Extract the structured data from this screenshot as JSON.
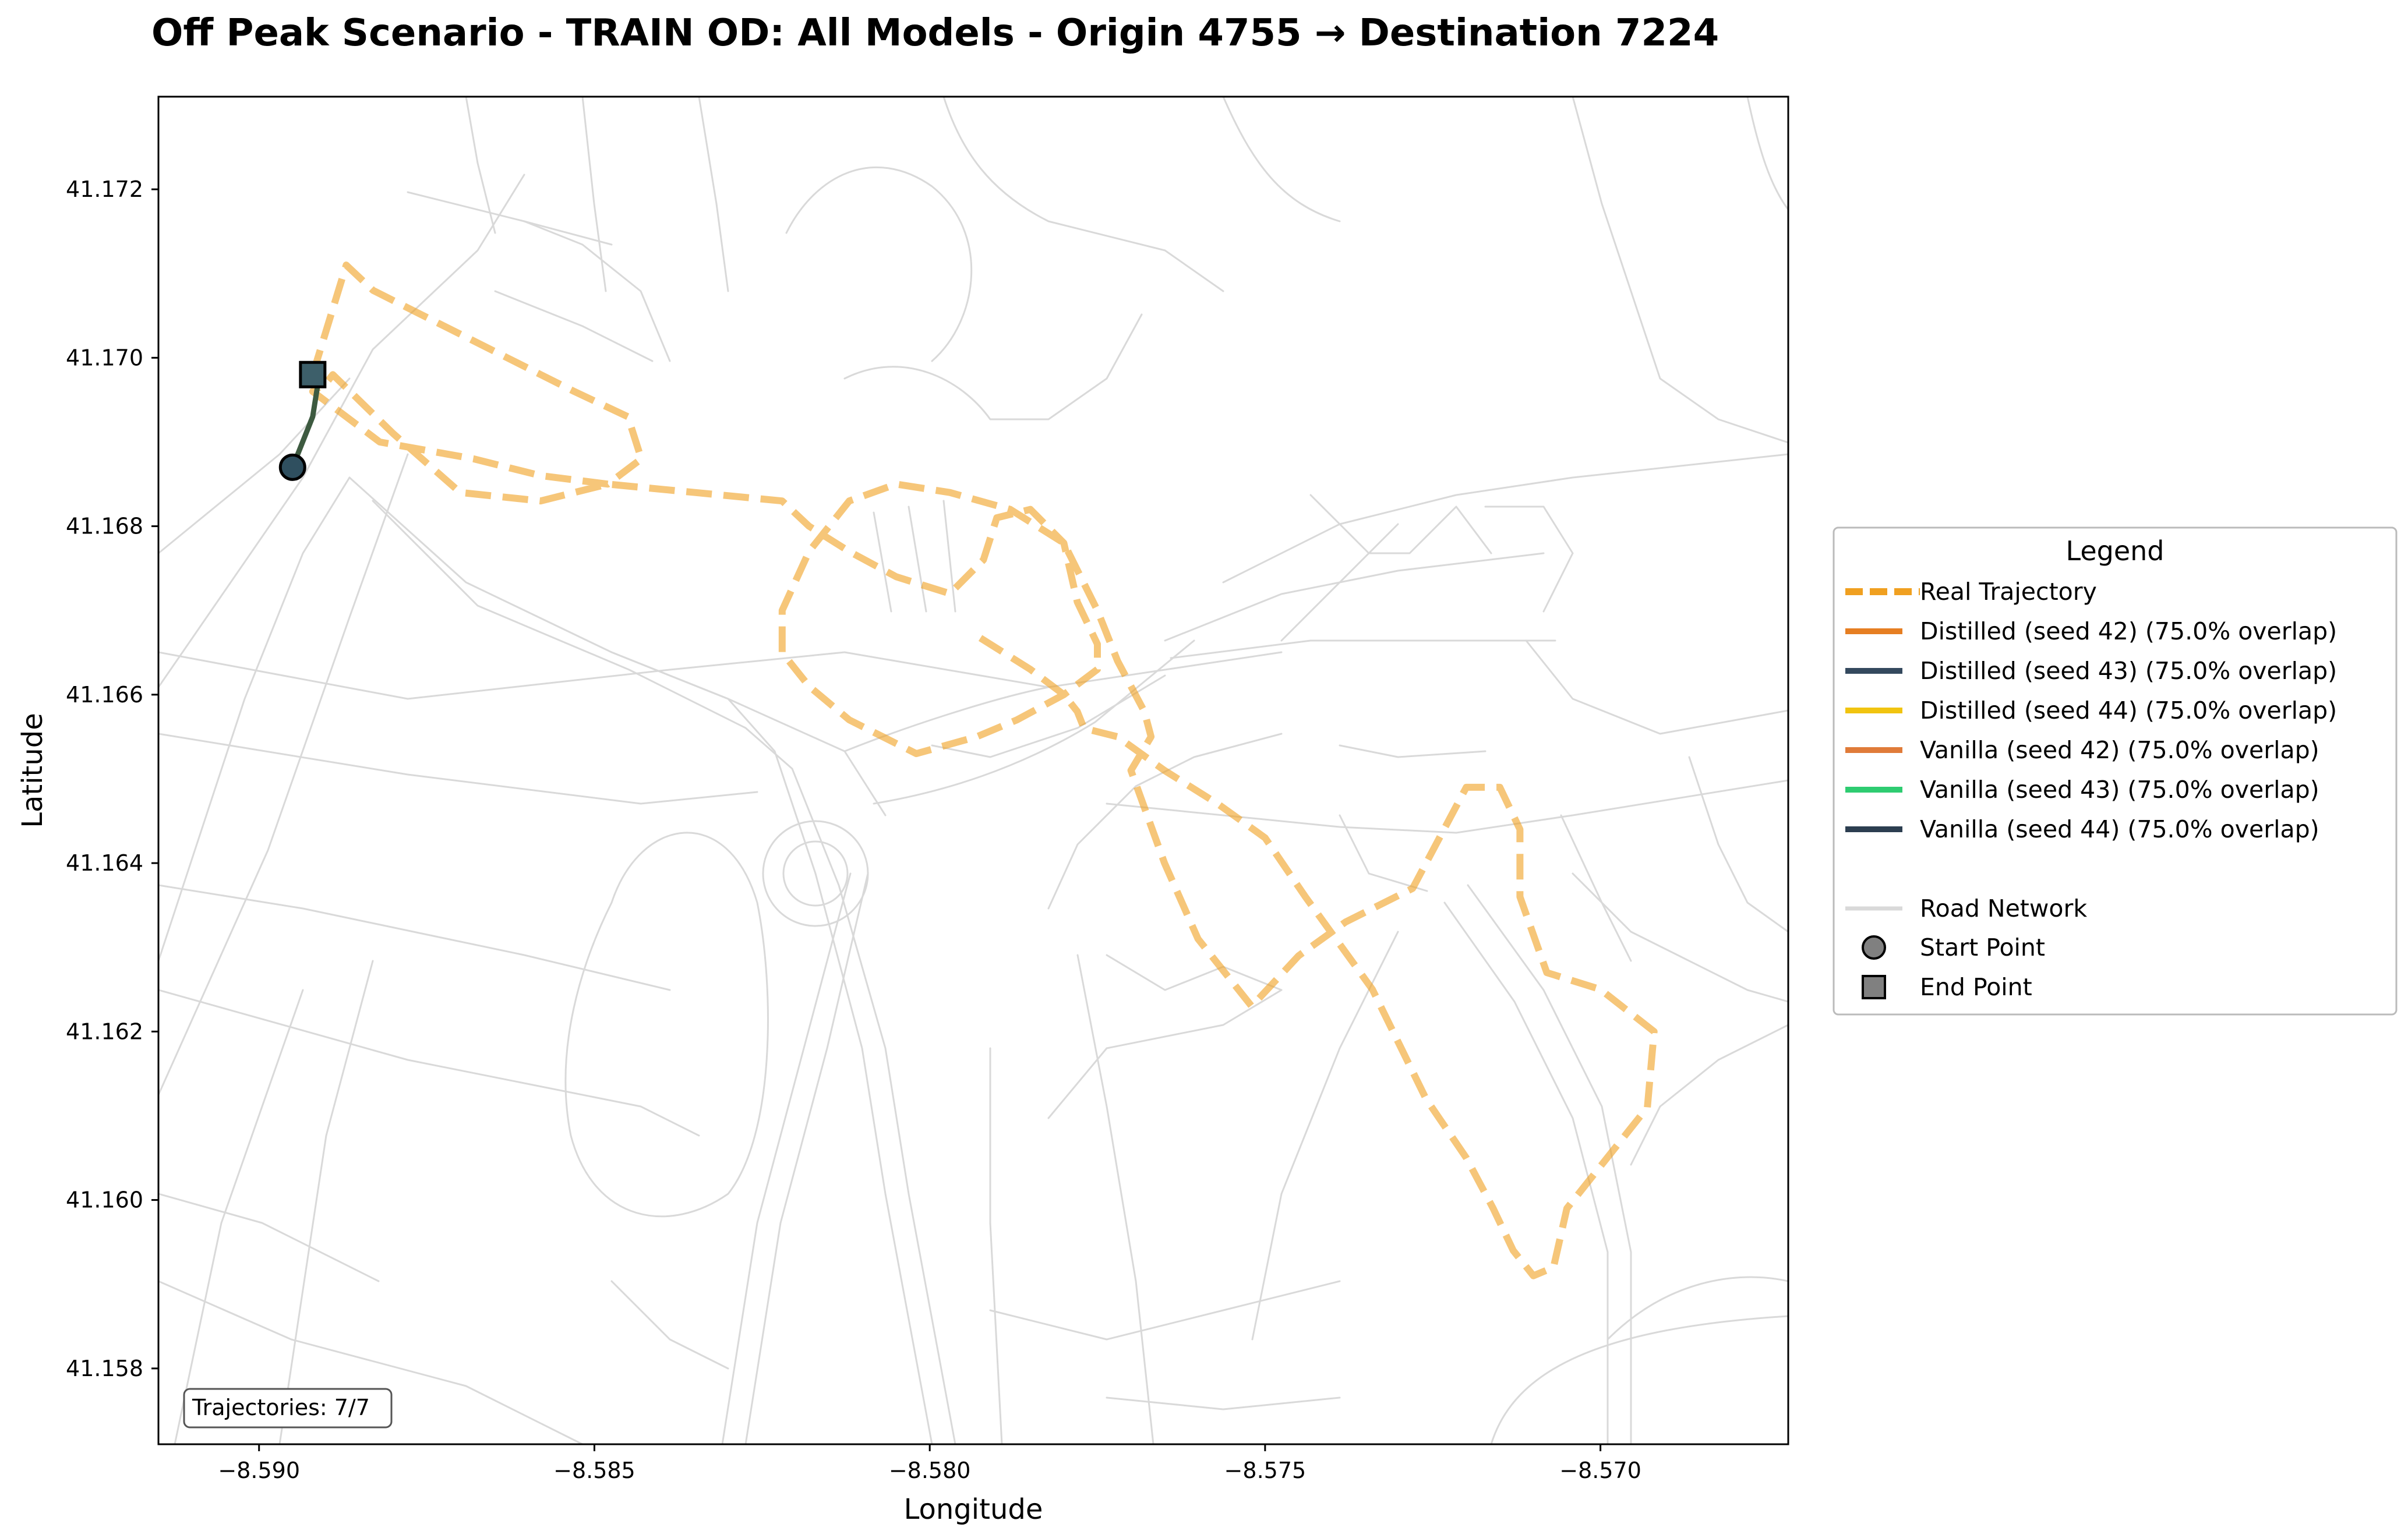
{
  "chart_data": {
    "type": "map",
    "title": "Off Peak Scenario - TRAIN OD: All Models - Origin 4755 → Destination 7224",
    "xlabel": "Longitude",
    "ylabel": "Latitude",
    "xlim": [
      -8.5915,
      -8.5672
    ],
    "ylim": [
      41.1571,
      41.1731
    ],
    "xticks": [
      -8.59,
      -8.585,
      -8.58,
      -8.575,
      -8.57
    ],
    "xtick_labels": [
      "−8.590",
      "−8.585",
      "−8.580",
      "−8.575",
      "−8.570"
    ],
    "yticks": [
      41.158,
      41.16,
      41.162,
      41.164,
      41.166,
      41.168,
      41.17,
      41.172
    ],
    "ytick_labels": [
      "41.158",
      "41.160",
      "41.162",
      "41.164",
      "41.166",
      "41.168",
      "41.170",
      "41.172"
    ],
    "grid": false,
    "legend_title": "Legend",
    "legend_placement": "outside-right",
    "annotation": "Trajectories: 7/7",
    "real_trajectory": {
      "name": "Real Trajectory",
      "color": "#f0a020",
      "style": "dashed",
      "lon": [
        -8.5892,
        -8.5887,
        -8.5883,
        -8.5878,
        -8.5873,
        -8.5868,
        -8.5863,
        -8.5858,
        -8.5853,
        -8.5845,
        -8.5843,
        -8.5848,
        -8.5858,
        -8.5868,
        -8.5882,
        -8.5892,
        -8.589,
        -8.5889,
        -8.588,
        -8.587,
        -8.5858,
        -8.5848,
        -8.5835,
        -8.5822,
        -8.5818,
        -8.5812,
        -8.5805,
        -8.5797,
        -8.5792,
        -8.579,
        -8.5785,
        -8.578,
        -8.5778,
        -8.5775,
        -8.5775,
        -8.578,
        -8.5787,
        -8.5793,
        -8.5802,
        -8.5812,
        -8.5818,
        -8.5822,
        -8.5822,
        -8.5818,
        -8.5812,
        -8.5805,
        -8.5797,
        -8.5788,
        -8.578,
        -8.5775,
        -8.5772,
        -8.5768,
        -8.5767,
        -8.577,
        -8.5765,
        -8.576,
        -8.5752,
        -8.5745,
        -8.5738,
        -8.5728,
        -8.572,
        -8.5715,
        -8.5712,
        -8.5712,
        -8.5708,
        -8.57,
        -8.5692,
        -8.5693,
        -8.57,
        -8.5705,
        -8.5707,
        -8.571,
        -8.5713,
        -8.5716,
        -8.572,
        -8.5726,
        -8.5734,
        -8.5744,
        -8.575,
        -8.5757,
        -8.5765,
        -8.5772,
        -8.5777,
        -8.5778,
        -8.578,
        -8.5785,
        -8.5793
      ],
      "lat": [
        41.1698,
        41.1711,
        41.1708,
        41.1706,
        41.1704,
        41.1702,
        41.17,
        41.1698,
        41.1696,
        41.1693,
        41.1688,
        41.1685,
        41.1686,
        41.1688,
        41.169,
        41.1696,
        41.1697,
        41.1698,
        41.1691,
        41.1684,
        41.1683,
        41.1685,
        41.1684,
        41.1683,
        41.168,
        41.1677,
        41.1674,
        41.1672,
        41.1676,
        41.1681,
        41.1682,
        41.1678,
        41.1671,
        41.1666,
        41.1663,
        41.166,
        41.1657,
        41.1655,
        41.1653,
        41.1657,
        41.1661,
        41.1665,
        41.167,
        41.1677,
        41.1683,
        41.1685,
        41.1684,
        41.1682,
        41.1678,
        41.167,
        41.1664,
        41.1658,
        41.1655,
        41.1651,
        41.164,
        41.1631,
        41.1623,
        41.1629,
        41.1633,
        41.1637,
        41.1649,
        41.1649,
        41.1644,
        41.1636,
        41.1627,
        41.1625,
        41.162,
        41.1611,
        41.1604,
        41.1599,
        41.1592,
        41.1591,
        41.1594,
        41.1599,
        41.1605,
        41.1612,
        41.1625,
        41.1636,
        41.1643,
        41.1647,
        41.1651,
        41.1655,
        41.1656,
        41.1658,
        41.166,
        41.1663,
        41.1667
      ]
    },
    "series": [
      {
        "name": "Distilled (seed 42) (75.0% overlap)",
        "color": "#e67e22"
      },
      {
        "name": "Distilled (seed 43) (75.0% overlap)",
        "color": "#34495e"
      },
      {
        "name": "Distilled (seed 44) (75.0% overlap)",
        "color": "#f1c40f"
      },
      {
        "name": "Vanilla (seed 42) (75.0% overlap)",
        "color": "#e07b39"
      },
      {
        "name": "Vanilla (seed 43) (75.0% overlap)",
        "color": "#2ecc71"
      },
      {
        "name": "Vanilla (seed 44) (75.0% overlap)",
        "color": "#2c3e50"
      }
    ],
    "model_trajectory": {
      "color": "#3d5a40",
      "lon": [
        -8.5895,
        -8.5892,
        -8.5891
      ],
      "lat": [
        41.1687,
        41.1693,
        41.1698
      ]
    },
    "start_point": {
      "name": "Start Point",
      "lon": -8.5895,
      "lat": 41.1687,
      "color": "#2f4f5f"
    },
    "end_point": {
      "name": "End Point",
      "lon": -8.5892,
      "lat": 41.1698,
      "color": "#3d5f6a"
    },
    "road_network_label": "Road Network",
    "road_color": "#d9d9d9"
  }
}
